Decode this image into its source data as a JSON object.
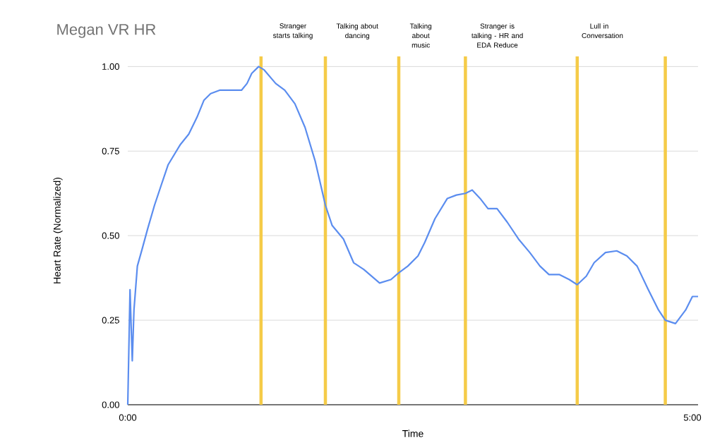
{
  "chart_data": {
    "type": "line",
    "title": "Megan VR HR",
    "xlabel": "Time",
    "ylabel": "Heart Rate (Normalized)",
    "color": "#5b8def",
    "grid": "y",
    "x": [
      0,
      0.02,
      0.04,
      0.055,
      0.085,
      0.127,
      0.176,
      0.237,
      0.297,
      0.358,
      0.467,
      0.54,
      0.613,
      0.674,
      0.734,
      0.813,
      0.934,
      1.007,
      1.056,
      1.098,
      1.159,
      1.208,
      1.31,
      1.39,
      1.48,
      1.57,
      1.66,
      1.75,
      1.81,
      1.91,
      2.0,
      2.09,
      2.23,
      2.33,
      2.4,
      2.48,
      2.57,
      2.63,
      2.72,
      2.83,
      2.91,
      2.99,
      3.05,
      3.12,
      3.19,
      3.27,
      3.36,
      3.46,
      3.56,
      3.65,
      3.73,
      3.82,
      3.91,
      3.98,
      4.06,
      4.13,
      4.23,
      4.33,
      4.42,
      4.51,
      4.61,
      4.7,
      4.76,
      4.85,
      4.94,
      5.0,
      5.05
    ],
    "values": [
      0,
      0.34,
      0.13,
      0.28,
      0.41,
      0.46,
      0.52,
      0.59,
      0.65,
      0.71,
      0.77,
      0.8,
      0.85,
      0.9,
      0.92,
      0.93,
      0.93,
      0.93,
      0.95,
      0.98,
      1.0,
      0.99,
      0.95,
      0.93,
      0.89,
      0.82,
      0.72,
      0.59,
      0.53,
      0.49,
      0.42,
      0.4,
      0.36,
      0.37,
      0.39,
      0.41,
      0.44,
      0.48,
      0.55,
      0.61,
      0.62,
      0.625,
      0.635,
      0.61,
      0.58,
      0.58,
      0.54,
      0.49,
      0.45,
      0.41,
      0.385,
      0.385,
      0.37,
      0.355,
      0.38,
      0.42,
      0.45,
      0.455,
      0.44,
      0.41,
      0.34,
      0.28,
      0.25,
      0.24,
      0.28,
      0.32,
      0.32
    ],
    "xlim": [
      0,
      5.05
    ],
    "ylim": [
      0,
      1.03
    ],
    "xticks": [
      {
        "value": 0,
        "label": "0:00"
      },
      {
        "value": 5,
        "label": "5:00"
      }
    ],
    "yticks": [
      {
        "value": 0,
        "label": "0.00"
      },
      {
        "value": 0.25,
        "label": "0.25"
      },
      {
        "value": 0.5,
        "label": "0.50"
      },
      {
        "value": 0.75,
        "label": "0.75"
      },
      {
        "value": 1,
        "label": "1.00"
      }
    ],
    "ref_lines": [
      {
        "axis": "x",
        "value": 1.18,
        "label": "Stranger starts talking",
        "color": "#f5cb48"
      },
      {
        "axis": "x",
        "value": 1.75,
        "label": "Talking about dancing",
        "color": "#f5cb48"
      },
      {
        "axis": "x",
        "value": 2.4,
        "label": "Talking about music",
        "color": "#f5cb48"
      },
      {
        "axis": "x",
        "value": 2.99,
        "label": "Stranger is talking - HR and EDA Reduce",
        "color": "#f5cb48"
      },
      {
        "axis": "x",
        "value": 3.98,
        "label": "Lull in Conversation",
        "color": "#f5cb48"
      },
      {
        "axis": "x",
        "value": 4.76,
        "color": "#f5cb48"
      }
    ]
  }
}
